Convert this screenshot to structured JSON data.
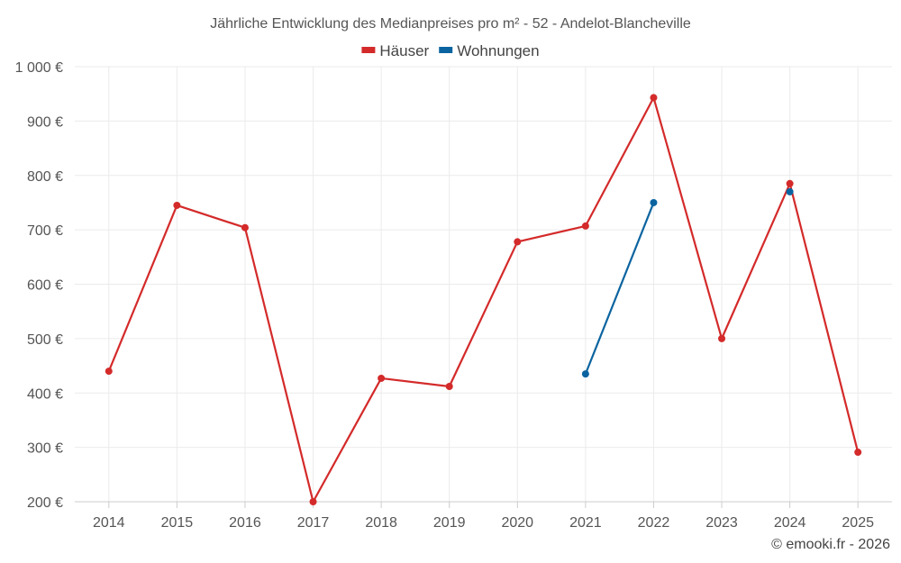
{
  "chart_data": {
    "type": "line",
    "title": "Jährliche Entwicklung des Medianpreises pro m² - 52 - Andelot-Blancheville",
    "categories": [
      "2014",
      "2015",
      "2016",
      "2017",
      "2018",
      "2019",
      "2020",
      "2021",
      "2022",
      "2023",
      "2024",
      "2025"
    ],
    "ylim": [
      200,
      1000
    ],
    "yticks": [
      200,
      300,
      400,
      500,
      600,
      700,
      800,
      900,
      1000
    ],
    "ytick_labels": [
      "200 €",
      "300 €",
      "400 €",
      "500 €",
      "600 €",
      "700 €",
      "800 €",
      "900 €",
      "1 000 €"
    ],
    "xlabel": "",
    "ylabel": "",
    "grid": true,
    "legend_position": "top-center",
    "series": [
      {
        "name": "Häuser",
        "color": "#d42a2a",
        "values": [
          440,
          745,
          704,
          200,
          427,
          412,
          678,
          707,
          943,
          500,
          785,
          291
        ]
      },
      {
        "name": "Wohnungen",
        "color": "#0b64a0",
        "values": [
          null,
          null,
          null,
          null,
          null,
          null,
          null,
          435,
          750,
          null,
          770,
          null
        ]
      }
    ]
  },
  "credit": "© emooki.fr - 2026"
}
